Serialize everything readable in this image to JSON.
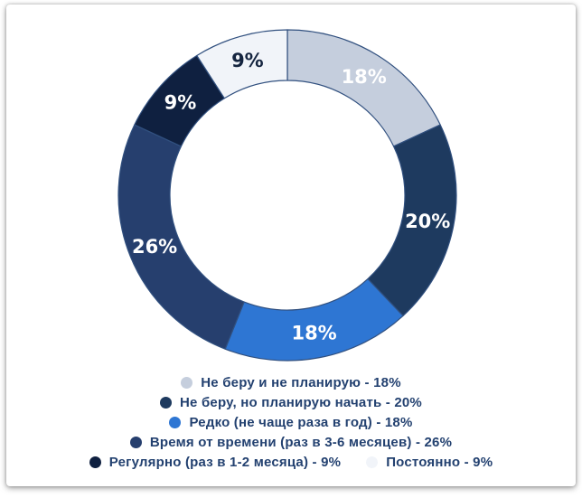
{
  "chart_data": {
    "type": "pie",
    "donut": true,
    "title": "",
    "unit": "%",
    "direction": "clockwise",
    "start_angle_deg": 0,
    "legend_position": "bottom",
    "legend_item_format": "{label} - {value}%",
    "legend_text_color": "#234170",
    "stroke_color": "#31507f",
    "hole_color": "#ffffff",
    "segments": [
      {
        "label": "Не беру и не планирую",
        "value": 18,
        "color": "#c5cedd",
        "value_label": "18%",
        "value_label_color": "#ffffff"
      },
      {
        "label": "Не беру, но планирую начать",
        "value": 20,
        "color": "#1e3a5f",
        "value_label": "20%",
        "value_label_color": "#ffffff"
      },
      {
        "label": "Редко (не чаще раза в год)",
        "value": 18,
        "color": "#2e76d3",
        "value_label": "18%",
        "value_label_color": "#ffffff"
      },
      {
        "label": "Время от времени (раз в 3-6 месяцев)",
        "value": 26,
        "color": "#263f6e",
        "value_label": "26%",
        "value_label_color": "#ffffff"
      },
      {
        "label": "Регулярно (раз в 1-2 месяца)",
        "value": 9,
        "color": "#0f2040",
        "value_label": "9%",
        "value_label_color": "#ffffff"
      },
      {
        "label": "Постоянно",
        "value": 9,
        "color": "#f1f4f9",
        "value_label": "9%",
        "value_label_color": "#14243f"
      }
    ],
    "legend_rows": [
      [
        0
      ],
      [
        1
      ],
      [
        2
      ],
      [
        3
      ],
      [
        4,
        5
      ]
    ]
  }
}
